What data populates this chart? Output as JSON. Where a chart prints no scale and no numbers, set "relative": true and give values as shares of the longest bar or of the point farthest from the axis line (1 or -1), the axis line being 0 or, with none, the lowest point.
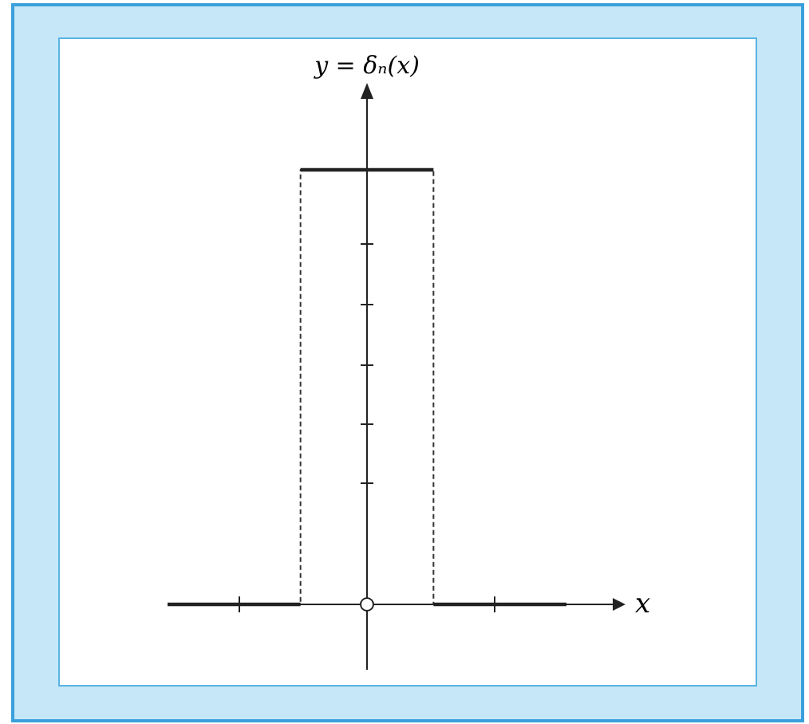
{
  "chart_data": {
    "type": "line",
    "relative": true,
    "xlabel": "x",
    "ylabel": "y = δₙ(x)",
    "categories": [
      null,
      null,
      null,
      null
    ],
    "series": [
      {
        "type": "step",
        "color": "#333333",
        "line_style": "dashed",
        "values": [
          0,
          1,
          0,
          0
        ]
      },
      {
        "color": "#222222",
        "values": [
          0,
          0,
          null,
          null
        ]
      },
      {
        "color": "#222222",
        "values": [
          null,
          1,
          1,
          null
        ]
      },
      {
        "color": "#222222",
        "values": [
          null,
          null,
          0,
          0
        ]
      }
    ]
  }
}
